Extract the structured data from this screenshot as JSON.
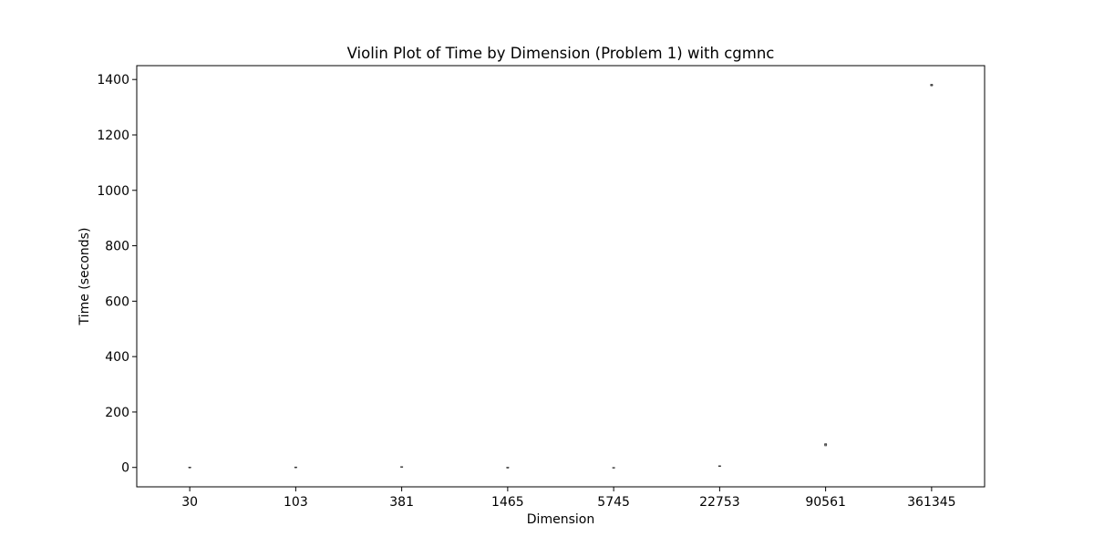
{
  "chart_data": {
    "type": "violin",
    "title": "Violin Plot of Time by Dimension (Problem 1) with cgmnc",
    "xlabel": "Dimension",
    "ylabel": "Time (seconds)",
    "categories": [
      "30",
      "103",
      "381",
      "1465",
      "5745",
      "22753",
      "90561",
      "361345"
    ],
    "ylim": [
      -70,
      1450
    ],
    "yticks": [
      0,
      200,
      400,
      600,
      800,
      1000,
      1200,
      1400
    ],
    "grid": false,
    "legend": "none",
    "series": [
      {
        "category": "30",
        "median": 0.5,
        "min": 0.3,
        "max": 0.8
      },
      {
        "category": "103",
        "median": 1.0,
        "min": 0.8,
        "max": 1.2
      },
      {
        "category": "381",
        "median": 2.0,
        "min": 1.0,
        "max": 3.0
      },
      {
        "category": "1465",
        "median": 0,
        "min": 0,
        "max": 0
      },
      {
        "category": "5745",
        "median": -1.0,
        "min": -2.0,
        "max": 0
      },
      {
        "category": "22753",
        "median": 5.0,
        "min": 4.0,
        "max": 6.0
      },
      {
        "category": "90561",
        "median": 82.0,
        "min": 78.0,
        "max": 86.0
      },
      {
        "category": "361345",
        "median": 1380.0,
        "min": 1377.0,
        "max": 1383.0
      }
    ],
    "colors": {
      "axes": "#000000",
      "violin_edge": "#333333",
      "violin_fill": "#cccccc"
    }
  }
}
